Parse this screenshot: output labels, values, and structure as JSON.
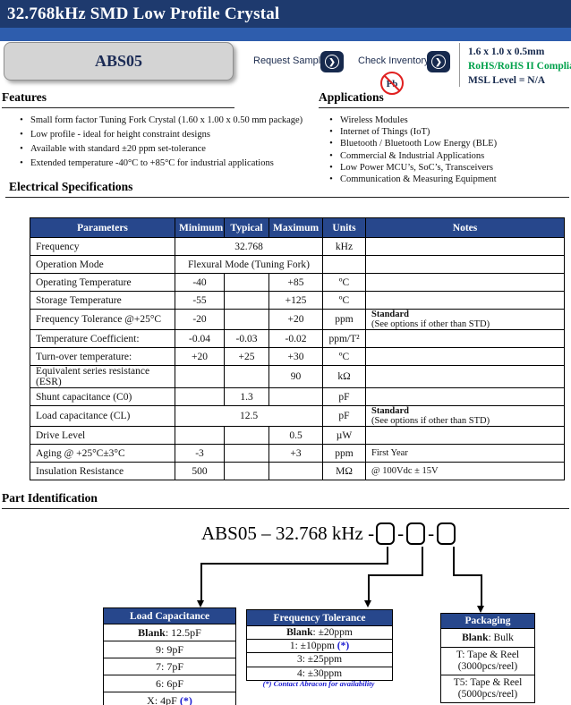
{
  "header": {
    "title": "32.768kHz SMD Low Profile Crystal",
    "part_label": "ABS05",
    "request_samples_label": "Request Samples",
    "check_inventory_label": "Check Inventory",
    "arrow_glyph": "❯",
    "pb_free_label": "Pb",
    "info": {
      "size": "1.6 x 1.0 x 0.5mm",
      "rohs": "RoHS/RoHS II Compliant",
      "msl": "MSL Level = N/A"
    }
  },
  "features": {
    "heading": "Features",
    "items": [
      "Small form factor Tuning Fork Crystal (1.60 x 1.00 x 0.50 mm package)",
      "Low profile - ideal for height constraint designs",
      "Available with standard ±20 ppm set-tolerance",
      "Extended temperature -40°C to +85°C for industrial applications"
    ]
  },
  "applications": {
    "heading": "Applications",
    "items": [
      "Wireless Modules",
      "Internet of Things (IoT)",
      "Bluetooth / Bluetooth Low Energy (BLE)",
      "Commercial & Industrial Applications",
      "Low Power MCU’s, SoC’s, Transceivers",
      "Communication & Measuring Equipment"
    ]
  },
  "electrical": {
    "heading": "Electrical Specifications",
    "columns": [
      "Parameters",
      "Minimum",
      "Typical",
      "Maximum",
      "Units",
      "Notes"
    ],
    "rows": [
      {
        "param": "Frequency",
        "span": "32.768",
        "units": "kHz",
        "notes": ""
      },
      {
        "param": "Operation Mode",
        "span": "Flexural Mode (Tuning Fork)",
        "units": "",
        "notes": ""
      },
      {
        "param": "Operating Temperature",
        "min": "-40",
        "typ": "",
        "max": "+85",
        "units": "ºC",
        "notes": ""
      },
      {
        "param": "Storage Temperature",
        "min": "-55",
        "typ": "",
        "max": "+125",
        "units": "ºC",
        "notes": ""
      },
      {
        "param": "Frequency Tolerance @+25°C",
        "min": "-20",
        "typ": "",
        "max": "+20",
        "units": "ppm",
        "notes_bold": "Standard",
        "notes": "(See options if other than STD)"
      },
      {
        "param": "Temperature Coefficient:",
        "min": "-0.04",
        "typ": "-0.03",
        "max": "-0.02",
        "units": "ppm/T²",
        "notes": ""
      },
      {
        "param": "Turn-over temperature:",
        "min": "+20",
        "typ": "+25",
        "max": "+30",
        "units": "ºC",
        "notes": ""
      },
      {
        "param": "Equivalent series resistance (ESR)",
        "min": "",
        "typ": "",
        "max": "90",
        "units": "kΩ",
        "notes": ""
      },
      {
        "param": "Shunt capacitance (C0)",
        "min": "",
        "typ": "1.3",
        "max": "",
        "units": "pF",
        "notes": ""
      },
      {
        "param": "Load capacitance (CL)",
        "span": "12.5",
        "units": "pF",
        "notes_bold": "Standard",
        "notes": "(See options if other than STD)"
      },
      {
        "param": "Drive Level",
        "min": "",
        "typ": "",
        "max": "0.5",
        "units": "µW",
        "notes": ""
      },
      {
        "param": "Aging @ +25°C±3°C",
        "min": "-3",
        "typ": "",
        "max": "+3",
        "units": "ppm",
        "notes": "First Year"
      },
      {
        "param": "Insulation Resistance",
        "min": "500",
        "typ": "",
        "max": "",
        "units": "MΩ",
        "notes": "@ 100Vdc ± 15V"
      }
    ]
  },
  "part_identification": {
    "heading": "Part Identification",
    "part_number_prefix": "ABS05 – 32.768 kHz -",
    "box_separator": "-",
    "option_tables": [
      {
        "title": "Load Capacitance",
        "rows": [
          {
            "segments": [
              {
                "text": "Blank",
                "bold": true
              },
              {
                "text": ": 12.5pF"
              }
            ]
          },
          {
            "segments": [
              {
                "text": "9: 9pF"
              }
            ]
          },
          {
            "segments": [
              {
                "text": "7: 7pF"
              }
            ]
          },
          {
            "segments": [
              {
                "text": "6: 6pF"
              }
            ]
          },
          {
            "segments": [
              {
                "text": "X: 4pF "
              },
              {
                "text": "(*)",
                "blue": true
              }
            ]
          }
        ]
      },
      {
        "title": "Frequency Tolerance",
        "rows": [
          {
            "segments": [
              {
                "text": "Blank",
                "bold": true
              },
              {
                "text": ": ±20ppm"
              }
            ]
          },
          {
            "segments": [
              {
                "text": "1: ±10ppm "
              },
              {
                "text": "(*)",
                "blue": true
              }
            ]
          },
          {
            "segments": [
              {
                "text": "3: ±25ppm"
              }
            ]
          },
          {
            "segments": [
              {
                "text": "4: ±30ppm"
              }
            ]
          }
        ]
      },
      {
        "title": "Packaging",
        "rows": [
          {
            "segments": [
              {
                "text": "Blank",
                "bold": true
              },
              {
                "text": ": Bulk"
              }
            ]
          },
          {
            "segments": [
              {
                "text": "T:  Tape & Reel"
              }
            ],
            "line2": "(3000pcs/reel)"
          },
          {
            "segments": [
              {
                "text": "T5:  Tape & Reel"
              }
            ],
            "line2": "(5000pcs/reel)"
          }
        ]
      }
    ],
    "footnote": "(*) Contact Abracon for availability"
  },
  "colors": {
    "title_bar": "#1e3a6e",
    "accent_strip": "#2e5dad",
    "table_header": "#27478c",
    "navy_text": "#16294d",
    "rohs_green": "#00a14b",
    "star_blue": "#1a1ad0",
    "pb_red": "#e02020"
  }
}
